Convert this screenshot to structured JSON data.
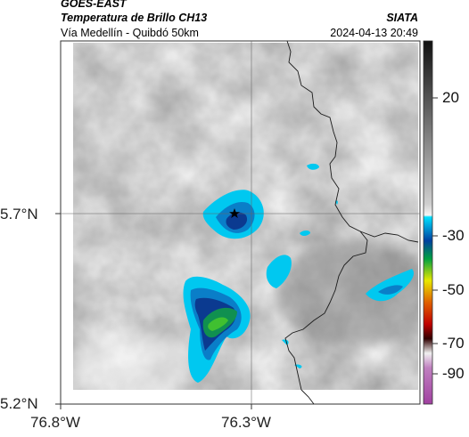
{
  "header": {
    "satellite": "GOES-EAST",
    "product": "Temperatura de Brillo CH13",
    "region": "Vía Medellín - Quibdó 50km",
    "org": "SIATA",
    "datetime": "2024-04-13 20:49"
  },
  "axes": {
    "lat_ticks": [
      "5.7°N",
      "5.2°N"
    ],
    "lon_ticks": [
      "76.8°W",
      "76.3°W"
    ]
  },
  "colorbar": {
    "ticks": [
      "20",
      "-30",
      "-50",
      "-70",
      "-90"
    ]
  },
  "marker": {
    "name": "star-icon"
  }
}
